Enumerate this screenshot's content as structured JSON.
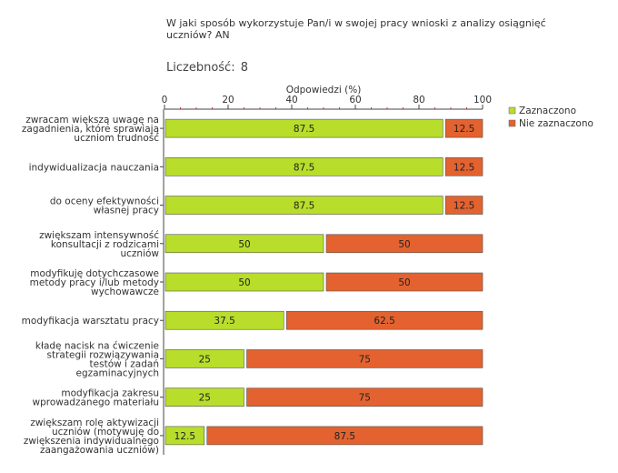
{
  "chart_data": {
    "type": "bar",
    "orientation": "horizontal",
    "stacked": true,
    "title": "W jaki sposób wykorzystuje Pan/i w swojej pracy wnioski z analizy osiągnięć uczniów? AN",
    "count_label": "Liczebność:",
    "count_value": "8",
    "xlabel": "Odpowiedzi (%)",
    "xlim": [
      0,
      100
    ],
    "xticks": [
      0,
      20,
      40,
      60,
      80,
      100
    ],
    "categories": [
      [
        "zwracam większą uwagę na",
        "zagadnienia, które sprawiają",
        "uczniom trudność"
      ],
      [
        "indywidualizacja nauczania"
      ],
      [
        "do oceny efektywności",
        "własnej pracy"
      ],
      [
        "zwiększam intensywność",
        "konsultacji z rodzicami",
        "uczniów"
      ],
      [
        "modyfikuję dotychczasowe",
        "metody pracy i/lub metody",
        "wychowawcze"
      ],
      [
        "modyfikacja warsztatu pracy"
      ],
      [
        "kładę nacisk na ćwiczenie",
        "strategii rozwiązywania",
        "testów i zadań",
        "egzaminacyjnych"
      ],
      [
        "modyfikacja zakresu",
        "wprowadzanego materiału"
      ],
      [
        "zwiększam rolę aktywizacji",
        "uczniów (motywuję do",
        "zwiększenia indywidualnego",
        "zaangażowania uczniów)"
      ]
    ],
    "series": [
      {
        "name": "Zaznaczono",
        "color": "#b8dd2b",
        "values": [
          87.5,
          87.5,
          87.5,
          50,
          50,
          37.5,
          25,
          25,
          12.5
        ]
      },
      {
        "name": "Nie zaznaczono",
        "color": "#e3622f",
        "values": [
          12.5,
          12.5,
          12.5,
          50,
          50,
          62.5,
          75,
          75,
          87.5
        ]
      }
    ],
    "legend": "top-right"
  }
}
